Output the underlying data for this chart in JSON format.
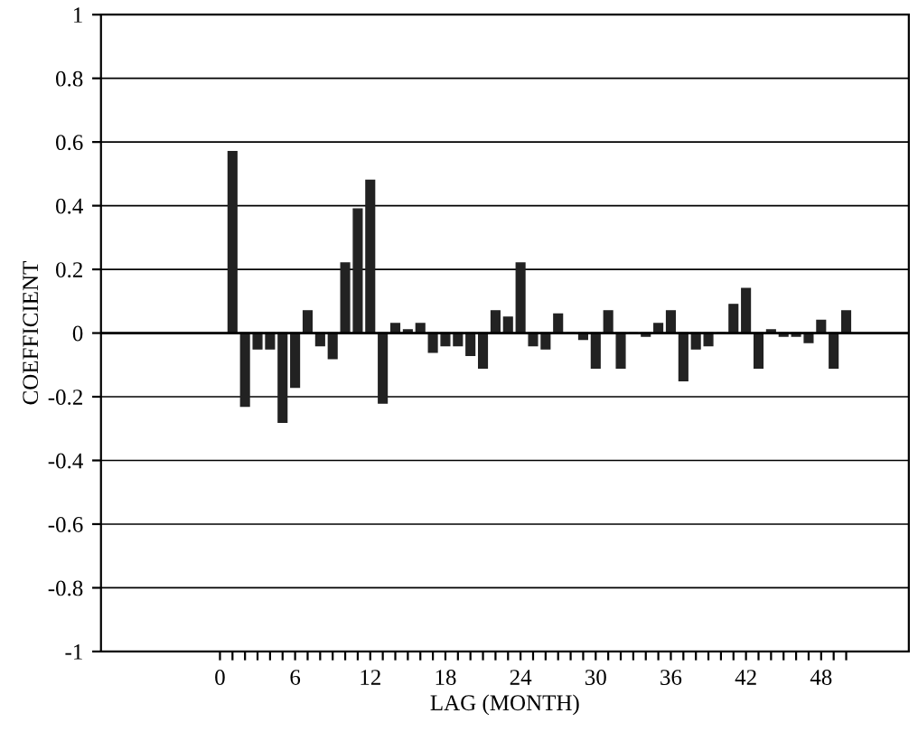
{
  "chart_data": {
    "type": "bar",
    "xlabel": "LAG (MONTH)",
    "ylabel": "COEFFICIENT",
    "color": "#222222",
    "grid": "y",
    "x": [
      1,
      2,
      3,
      4,
      5,
      6,
      7,
      8,
      9,
      10,
      11,
      12,
      13,
      14,
      15,
      16,
      17,
      18,
      19,
      20,
      21,
      22,
      23,
      24,
      25,
      26,
      27,
      28,
      29,
      30,
      31,
      32,
      33,
      34,
      35,
      36,
      37,
      38,
      39,
      40,
      41,
      42,
      43,
      44,
      45,
      46,
      47,
      48,
      49,
      50
    ],
    "values": [
      0.57,
      -0.23,
      -0.05,
      -0.05,
      -0.28,
      -0.17,
      0.07,
      -0.04,
      -0.08,
      0.22,
      0.39,
      0.48,
      -0.22,
      0.03,
      0.01,
      0.03,
      -0.06,
      -0.04,
      -0.04,
      -0.07,
      -0.11,
      0.07,
      0.05,
      0.22,
      -0.04,
      -0.05,
      0.06,
      0,
      -0.02,
      -0.11,
      0.07,
      -0.11,
      0,
      -0.01,
      0.03,
      0.07,
      -0.15,
      -0.05,
      -0.04,
      0,
      0.09,
      0.14,
      -0.11,
      0.01,
      -0.01,
      -0.01,
      -0.03,
      0.04,
      -0.11,
      0.07
    ],
    "xlim": [
      -9.5,
      55
    ],
    "ylim": [
      -1,
      1
    ],
    "yticks": [
      -1,
      -0.8,
      -0.6,
      -0.4,
      -0.2,
      0,
      0.2,
      0.4,
      0.6,
      0.8,
      1
    ],
    "xticks": [
      0,
      {
        "value": 1,
        "label": null
      },
      {
        "value": 2,
        "label": null
      },
      {
        "value": 3,
        "label": null
      },
      {
        "value": 4,
        "label": null
      },
      {
        "value": 5,
        "label": null
      },
      6,
      {
        "value": 7,
        "label": null
      },
      {
        "value": 8,
        "label": null
      },
      {
        "value": 9,
        "label": null
      },
      {
        "value": 10,
        "label": null
      },
      {
        "value": 11,
        "label": null
      },
      12,
      {
        "value": 13,
        "label": null
      },
      {
        "value": 14,
        "label": null
      },
      {
        "value": 15,
        "label": null
      },
      {
        "value": 16,
        "label": null
      },
      {
        "value": 17,
        "label": null
      },
      18,
      {
        "value": 19,
        "label": null
      },
      {
        "value": 20,
        "label": null
      },
      {
        "value": 21,
        "label": null
      },
      {
        "value": 22,
        "label": null
      },
      {
        "value": 23,
        "label": null
      },
      24,
      {
        "value": 25,
        "label": null
      },
      {
        "value": 26,
        "label": null
      },
      {
        "value": 27,
        "label": null
      },
      {
        "value": 28,
        "label": null
      },
      {
        "value": 29,
        "label": null
      },
      30,
      {
        "value": 31,
        "label": null
      },
      {
        "value": 32,
        "label": null
      },
      {
        "value": 33,
        "label": null
      },
      {
        "value": 34,
        "label": null
      },
      {
        "value": 35,
        "label": null
      },
      36,
      {
        "value": 37,
        "label": null
      },
      {
        "value": 38,
        "label": null
      },
      {
        "value": 39,
        "label": null
      },
      {
        "value": 40,
        "label": null
      },
      {
        "value": 41,
        "label": null
      },
      42,
      {
        "value": 43,
        "label": null
      },
      {
        "value": 44,
        "label": null
      },
      {
        "value": 45,
        "label": null
      },
      {
        "value": 46,
        "label": null
      },
      {
        "value": 47,
        "label": null
      },
      48,
      {
        "value": 49,
        "label": null
      },
      {
        "value": 50,
        "label": null
      }
    ]
  }
}
